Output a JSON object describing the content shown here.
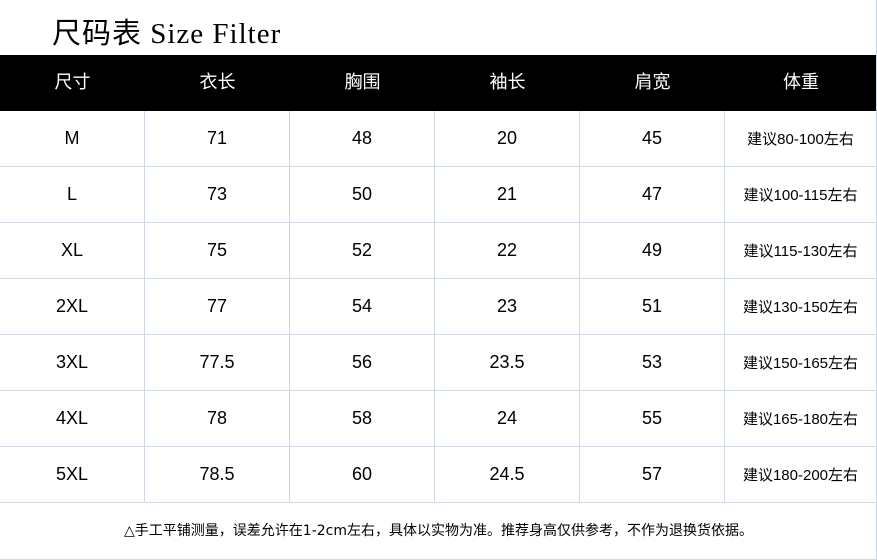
{
  "title": "尺码表 Size Filter",
  "headers": [
    "尺寸",
    "衣长",
    "胸围",
    "袖长",
    "肩宽",
    "体重"
  ],
  "rows": [
    [
      "M",
      "71",
      "48",
      "20",
      "45",
      "建议80-100左右"
    ],
    [
      "L",
      "73",
      "50",
      "21",
      "47",
      "建议100-115左右"
    ],
    [
      "XL",
      "75",
      "52",
      "22",
      "49",
      "建议115-130左右"
    ],
    [
      "2XL",
      "77",
      "54",
      "23",
      "51",
      "建议130-150左右"
    ],
    [
      "3XL",
      "77.5",
      "56",
      "23.5",
      "53",
      "建议150-165左右"
    ],
    [
      "4XL",
      "78",
      "58",
      "24",
      "55",
      "建议165-180左右"
    ],
    [
      "5XL",
      "78.5",
      "60",
      "24.5",
      "57",
      "建议180-200左右"
    ]
  ],
  "note": "△手工平铺测量，误差允许在1-2cm左右，具体以实物为准。推荐身高仅供参考，不作为退换货依据。"
}
